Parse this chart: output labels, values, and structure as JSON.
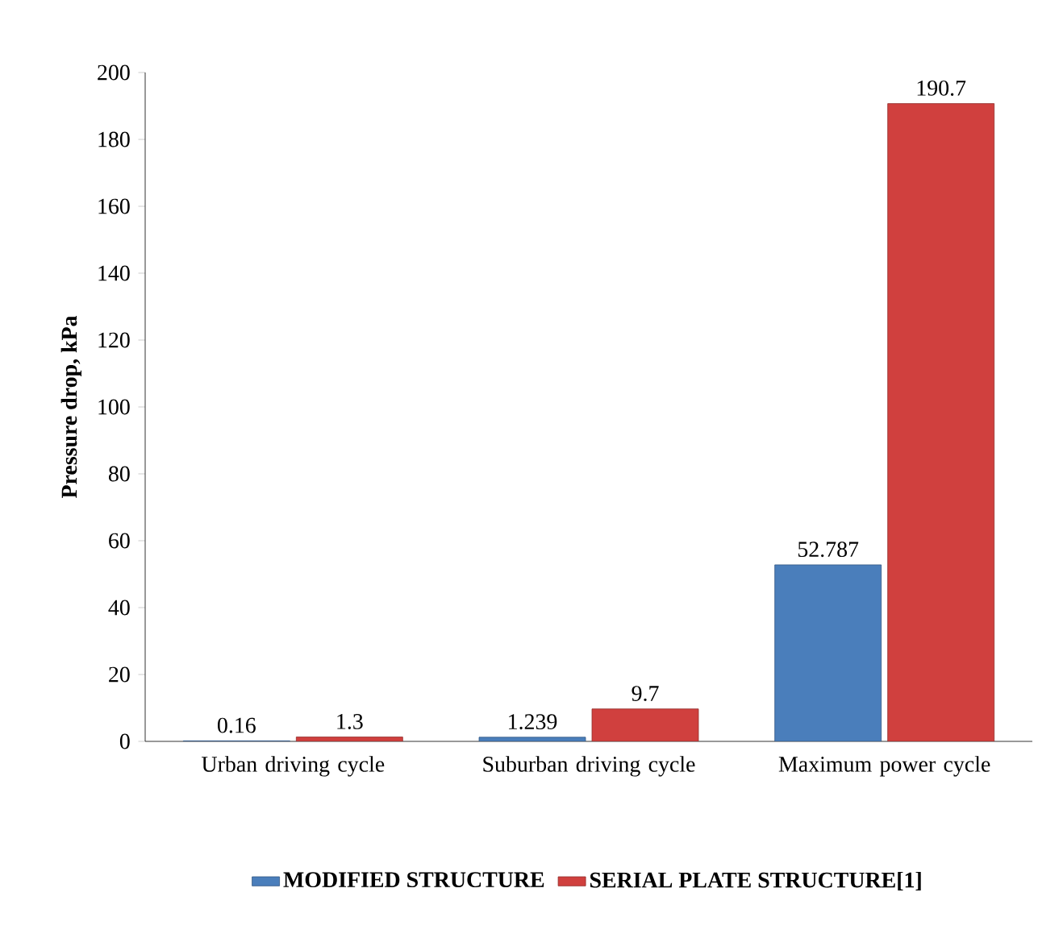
{
  "chart_data": {
    "type": "bar",
    "ylabel": "Pressure drop, kPa",
    "categories": [
      "Urban driving cycle",
      "Suburban driving cycle",
      "Maximum power cycle"
    ],
    "series": [
      {
        "name": "MODIFIED STRUCTURE",
        "color": "#4a7ebb",
        "values": [
          0.16,
          1.239,
          52.787
        ]
      },
      {
        "name": "SERIAL PLATE STRUCTURE[1]",
        "color": "#d0403e",
        "values": [
          1.3,
          9.7,
          190.7
        ]
      }
    ],
    "ylim": [
      0,
      200
    ],
    "yticks": [
      0,
      20,
      40,
      60,
      80,
      100,
      120,
      140,
      160,
      180,
      200
    ],
    "data_labels": true,
    "legend": "bottom"
  }
}
